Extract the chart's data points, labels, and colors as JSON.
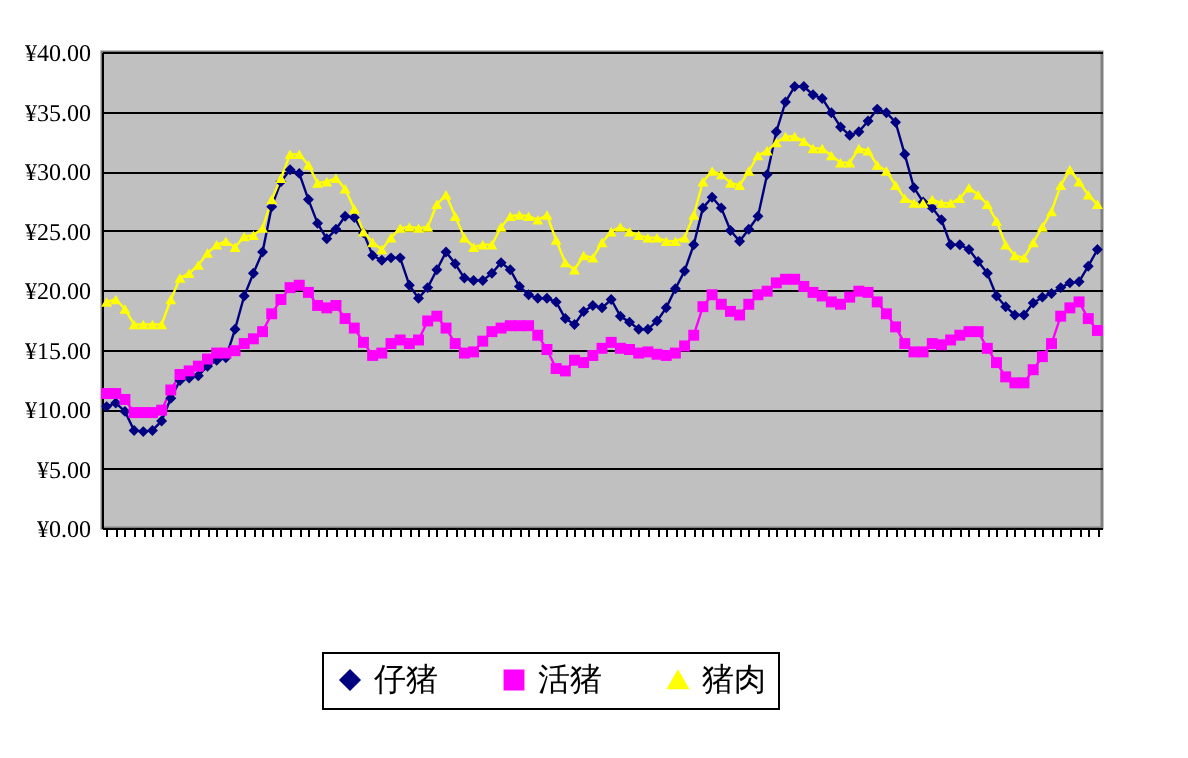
{
  "chart_data": {
    "type": "line",
    "categories": [
      null,
      null,
      null,
      null,
      null,
      null,
      null,
      null,
      null,
      null,
      null,
      null,
      null,
      null,
      null,
      null,
      null,
      null,
      null,
      null,
      null,
      null,
      null,
      null,
      null,
      null,
      null,
      null,
      null,
      null,
      null,
      null,
      null,
      null,
      null,
      null,
      null,
      null,
      null,
      null,
      null,
      null,
      null,
      null,
      null,
      null,
      null,
      null,
      null,
      null,
      null,
      null,
      null,
      null,
      null,
      null,
      null,
      null,
      null,
      null,
      null,
      null,
      null,
      null,
      null,
      null,
      null,
      null,
      null,
      null,
      null,
      null,
      null,
      null,
      null,
      null,
      null,
      null,
      null,
      null,
      null,
      null,
      null,
      null,
      null,
      null,
      null,
      null,
      null,
      null,
      null,
      null,
      null,
      null,
      null,
      null,
      null,
      null,
      null,
      null,
      null,
      null,
      null,
      null,
      null,
      null,
      null,
      null,
      null
    ],
    "series": [
      {
        "name": "仔猪",
        "color": "#000080",
        "marker": "diamond",
        "values": [
          10.2,
          10.5,
          9.8,
          8.2,
          8.1,
          8.2,
          9.0,
          10.9,
          12.4,
          12.6,
          12.8,
          13.6,
          14.1,
          14.3,
          16.7,
          19.5,
          21.4,
          23.2,
          27.0,
          29.1,
          30.1,
          29.8,
          27.6,
          25.6,
          24.3,
          25.1,
          26.2,
          26.1,
          24.8,
          22.9,
          22.5,
          22.7,
          22.7,
          20.4,
          19.3,
          20.2,
          21.7,
          23.2,
          22.2,
          21.0,
          20.8,
          20.8,
          21.4,
          22.3,
          21.7,
          20.3,
          19.6,
          19.3,
          19.3,
          19.0,
          17.6,
          17.1,
          18.2,
          18.7,
          18.5,
          19.2,
          17.8,
          17.3,
          16.7,
          16.7,
          17.4,
          18.5,
          20.1,
          21.6,
          23.8,
          26.9,
          27.8,
          26.9,
          25.0,
          24.1,
          25.1,
          26.2,
          29.7,
          33.3,
          35.8,
          37.1,
          37.1,
          36.4,
          36.1,
          34.9,
          33.7,
          33.0,
          33.3,
          34.2,
          35.2,
          34.9,
          34.1,
          31.4,
          28.6,
          27.4,
          26.9,
          25.9,
          23.8,
          23.8,
          23.4,
          22.4,
          21.4,
          19.5,
          18.6,
          17.9,
          17.9,
          18.9,
          19.4,
          19.7,
          20.2,
          20.6,
          20.7,
          22.0,
          23.4
        ]
      },
      {
        "name": "活猪",
        "color": "#ff00ff",
        "marker": "square",
        "values": [
          11.3,
          11.3,
          10.8,
          9.7,
          9.7,
          9.7,
          9.9,
          11.6,
          12.9,
          13.2,
          13.6,
          14.2,
          14.7,
          14.7,
          14.9,
          15.5,
          15.9,
          16.5,
          18.0,
          19.2,
          20.2,
          20.4,
          19.8,
          18.7,
          18.5,
          18.7,
          17.6,
          16.8,
          15.6,
          14.5,
          14.7,
          15.5,
          15.8,
          15.5,
          15.8,
          17.4,
          17.8,
          16.8,
          15.5,
          14.7,
          14.8,
          15.7,
          16.5,
          16.8,
          17.0,
          17.0,
          17.0,
          16.2,
          15.0,
          13.4,
          13.2,
          14.1,
          13.9,
          14.5,
          15.1,
          15.6,
          15.1,
          15.0,
          14.7,
          14.8,
          14.6,
          14.5,
          14.7,
          15.3,
          16.2,
          18.6,
          19.6,
          18.8,
          18.2,
          17.9,
          18.8,
          19.6,
          19.9,
          20.6,
          20.9,
          20.9,
          20.3,
          19.8,
          19.5,
          19.0,
          18.8,
          19.4,
          19.9,
          19.8,
          19.0,
          18.0,
          16.9,
          15.5,
          14.8,
          14.8,
          15.5,
          15.4,
          15.8,
          16.2,
          16.5,
          16.5,
          15.1,
          13.9,
          12.7,
          12.2,
          12.2,
          13.3,
          14.4,
          15.5,
          17.8,
          18.5,
          19.0,
          17.6,
          16.6
        ]
      },
      {
        "name": "猪肉",
        "color": "#ffff00",
        "marker": "triangle",
        "values": [
          19.0,
          19.2,
          18.4,
          17.1,
          17.1,
          17.1,
          17.1,
          19.2,
          21.0,
          21.4,
          22.1,
          23.1,
          23.8,
          24.1,
          23.6,
          24.5,
          24.6,
          25.2,
          27.6,
          29.4,
          31.4,
          31.4,
          30.5,
          29.0,
          29.1,
          29.4,
          28.5,
          26.8,
          24.9,
          24.0,
          23.4,
          24.4,
          25.2,
          25.3,
          25.2,
          25.3,
          27.2,
          28.0,
          26.2,
          24.4,
          23.6,
          23.8,
          23.8,
          25.3,
          26.2,
          26.3,
          26.2,
          25.9,
          26.3,
          24.2,
          22.3,
          21.7,
          22.9,
          22.7,
          24.0,
          24.9,
          25.3,
          24.9,
          24.6,
          24.4,
          24.4,
          24.1,
          24.1,
          24.4,
          26.3,
          29.1,
          30.0,
          29.7,
          29.0,
          28.8,
          30.0,
          31.3,
          31.7,
          32.4,
          32.9,
          32.9,
          32.5,
          31.9,
          31.9,
          31.3,
          30.7,
          30.7,
          31.9,
          31.7,
          30.5,
          30.0,
          28.8,
          27.7,
          27.3,
          27.3,
          27.6,
          27.3,
          27.3,
          27.7,
          28.6,
          28.0,
          27.2,
          25.8,
          23.8,
          22.9,
          22.7,
          24.0,
          25.3,
          26.6,
          28.8,
          30.1,
          29.1,
          28.0,
          27.2
        ]
      }
    ],
    "ylim": [
      0,
      40
    ],
    "yticks": [
      {
        "value": 0,
        "label": "¥0.00"
      },
      {
        "value": 5,
        "label": "¥5.00"
      },
      {
        "value": 10,
        "label": "¥10.00"
      },
      {
        "value": 15,
        "label": "¥15.00"
      },
      {
        "value": 20,
        "label": "¥20.00"
      },
      {
        "value": 25,
        "label": "¥25.00"
      },
      {
        "value": 30,
        "label": "¥30.00"
      },
      {
        "value": 35,
        "label": "¥35.00"
      },
      {
        "value": 40,
        "label": "¥40.00"
      }
    ],
    "grid": "y",
    "legend": "bottom",
    "tick_labels": "y",
    "line_style": "solid"
  }
}
